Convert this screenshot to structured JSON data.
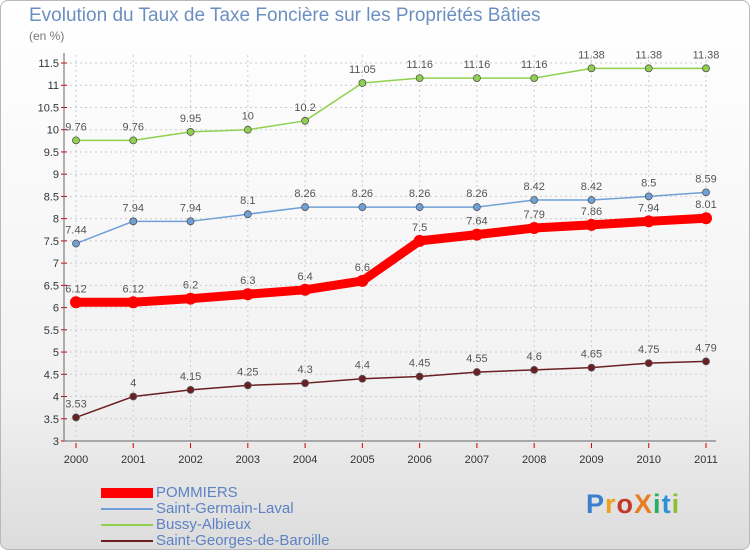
{
  "header": {
    "title": "Evolution du Taux de Taxe Foncière sur les Propriétés Bâties",
    "unit": "(en %)"
  },
  "logo": {
    "text": "ProXiti",
    "colors": [
      "#3a80d0",
      "#f0a020",
      "#c0392b",
      "#e67e22",
      "#27ae60",
      "#2d8fd5",
      "#8fbf2e"
    ]
  },
  "chart_data": {
    "type": "line",
    "title": "Evolution du Taux de Taxe Foncière sur les Propriétés Bâties",
    "ylabel": "(en %)",
    "xlabel": "",
    "ylim": [
      3,
      11.5
    ],
    "yticks": [
      "3",
      "3.5",
      "4",
      "4.5",
      "5",
      "5.5",
      "6",
      "6.5",
      "7",
      "7.5",
      "8",
      "8.5",
      "9",
      "9.5",
      "10",
      "10.5",
      "11",
      "11.5"
    ],
    "categories": [
      "2000",
      "2001",
      "2002",
      "2003",
      "2004",
      "2005",
      "2006",
      "2007",
      "2008",
      "2009",
      "2010",
      "2011"
    ],
    "grid": true,
    "legend_position": "bottom-left",
    "series": [
      {
        "name": "Saint-Georges-de-Baroille",
        "color": "#6b1f22",
        "values": [
          3.53,
          4,
          4.15,
          4.25,
          4.3,
          4.4,
          4.45,
          4.55,
          4.6,
          4.65,
          4.75,
          4.79
        ],
        "labels": [
          "3.53",
          "4",
          "4.15",
          "4.25",
          "4.3",
          "4.4",
          "4.45",
          "4.55",
          "4.6",
          "4.65",
          "4.75",
          "4.79"
        ]
      },
      {
        "name": "Bussy-Albieux",
        "color": "#8fd14f",
        "values": [
          9.76,
          9.76,
          9.95,
          10,
          10.2,
          11.05,
          11.16,
          11.16,
          11.16,
          11.38,
          11.38,
          11.38
        ],
        "labels": [
          "9.76",
          "9.76",
          "9.95",
          "10",
          "10.2",
          "11.05",
          "11.16",
          "11.16",
          "11.16",
          "11.38",
          "11.38",
          "11.38"
        ]
      },
      {
        "name": "Saint-Germain-Laval",
        "color": "#6fa0d8",
        "values": [
          7.44,
          7.94,
          7.94,
          8.1,
          8.26,
          8.26,
          8.26,
          8.26,
          8.42,
          8.42,
          8.5,
          8.59
        ],
        "labels": [
          "7.44",
          "7.94",
          "7.94",
          "8.1",
          "8.26",
          "8.26",
          "8.26",
          "8.26",
          "8.42",
          "8.42",
          "8.5",
          "8.59"
        ]
      },
      {
        "name": "POMMIERS",
        "color": "#ff0000",
        "values": [
          6.12,
          6.12,
          6.2,
          6.3,
          6.4,
          6.6,
          7.5,
          7.64,
          7.79,
          7.86,
          7.94,
          8.01
        ],
        "labels": [
          "6.12",
          "6.12",
          "6.2",
          "6.3",
          "6.4",
          "6.6",
          "7.5",
          "7.64",
          "7.79",
          "7.86",
          "7.94",
          "8.01"
        ]
      }
    ],
    "legend": [
      "POMMIERS",
      "Saint-Germain-Laval",
      "Bussy-Albieux",
      "Saint-Georges-de-Baroille"
    ]
  }
}
